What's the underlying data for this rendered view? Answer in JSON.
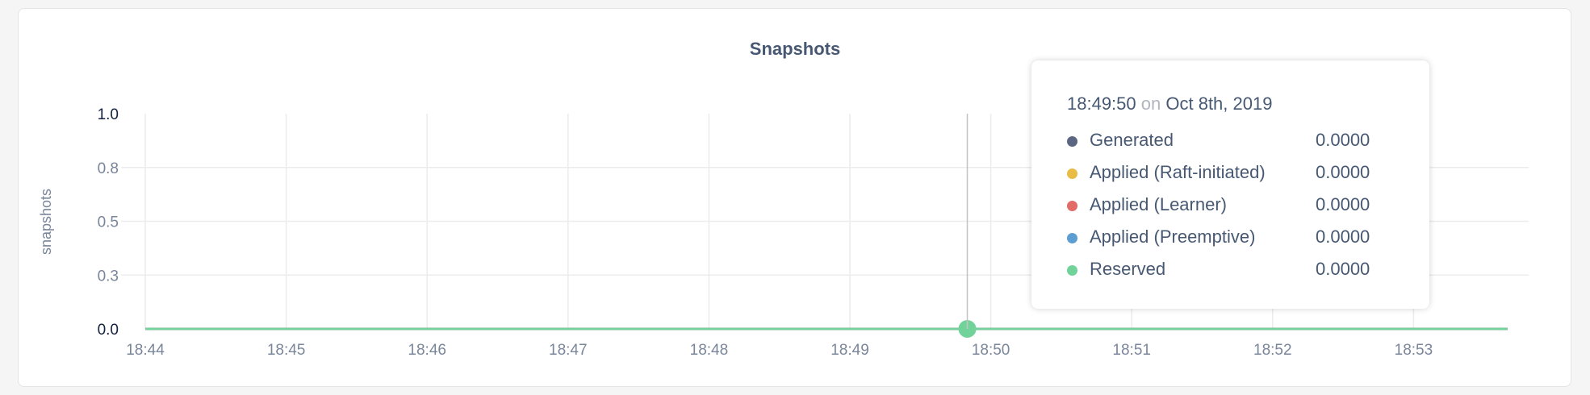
{
  "chart_data": {
    "type": "line",
    "title": "Snapshots",
    "ylabel": "snapshots",
    "xlabel": "",
    "ylim": [
      0,
      1
    ],
    "yticks": [
      {
        "value": 0,
        "label": "0.0"
      },
      {
        "value": 0.25,
        "label": "0.3"
      },
      {
        "value": 0.5,
        "label": "0.5"
      },
      {
        "value": 0.75,
        "label": "0.8"
      },
      {
        "value": 1,
        "label": "1.0"
      }
    ],
    "xticks": [
      "18:44",
      "18:45",
      "18:46",
      "18:47",
      "18:48",
      "18:49",
      "18:50",
      "18:51",
      "18:52",
      "18:53"
    ],
    "xlim_minutes_label": [
      "18:44",
      "18:53:40"
    ],
    "grid": true,
    "series": [
      {
        "name": "Generated",
        "color": "#5b6782",
        "x": [
          "18:44:00",
          "18:53:40"
        ],
        "y": [
          0,
          0
        ]
      },
      {
        "name": "Applied (Raft-initiated)",
        "color": "#e8bc45",
        "x": [
          "18:44:00",
          "18:53:40"
        ],
        "y": [
          0,
          0
        ]
      },
      {
        "name": "Applied (Learner)",
        "color": "#e26b67",
        "x": [
          "18:44:00",
          "18:53:40"
        ],
        "y": [
          0,
          0
        ]
      },
      {
        "name": "Applied (Preemptive)",
        "color": "#5c9dd2",
        "x": [
          "18:44:00",
          "18:53:40"
        ],
        "y": [
          0,
          0
        ]
      },
      {
        "name": "Reserved",
        "color": "#71d39a",
        "x": [
          "18:44:00",
          "18:53:40"
        ],
        "y": [
          0,
          0
        ]
      }
    ],
    "hover": {
      "x": "18:49:50",
      "y": 0
    }
  },
  "tooltip": {
    "time": "18:49:50",
    "on": "on",
    "date": "Oct 8th, 2019",
    "rows": [
      {
        "label": "Generated",
        "value": "0.0000",
        "color": "#5b6782"
      },
      {
        "label": "Applied (Raft-initiated)",
        "value": "0.0000",
        "color": "#e8bc45"
      },
      {
        "label": "Applied (Learner)",
        "value": "0.0000",
        "color": "#e26b67"
      },
      {
        "label": "Applied (Preemptive)",
        "value": "0.0000",
        "color": "#5c9dd2"
      },
      {
        "label": "Reserved",
        "value": "0.0000",
        "color": "#71d39a"
      }
    ]
  }
}
